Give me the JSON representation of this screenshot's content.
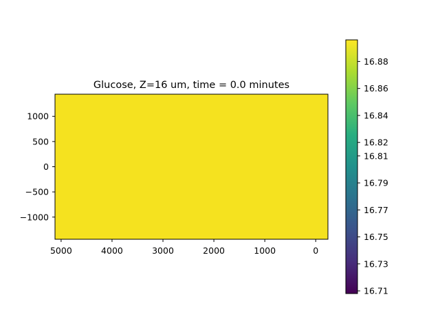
{
  "chart_data": {
    "type": "heatmap",
    "title": "Glucose, Z=16 um, time = 0.0 minutes",
    "xlabel": "",
    "ylabel": "",
    "x_axis": {
      "ticks": [
        5000,
        4000,
        3000,
        2000,
        1000,
        0
      ],
      "tick_labels": [
        "5000",
        "4000",
        "3000",
        "2000",
        "1000",
        "0"
      ],
      "inverted": true,
      "range": [
        5120,
        -240
      ]
    },
    "y_axis": {
      "ticks": [
        1000,
        500,
        0,
        -500,
        -1000
      ],
      "tick_labels": [
        "1000",
        "500",
        "0",
        "−500",
        "−1000"
      ],
      "range": [
        -1440,
        1440
      ]
    },
    "grid": false,
    "field": {
      "value": 16.89,
      "uniform": true,
      "color": "#f5e21f"
    },
    "colorbar": {
      "colormap": "viridis",
      "range": [
        16.708,
        16.896
      ],
      "ticks": [
        16.71,
        16.73,
        16.75,
        16.77,
        16.79,
        16.81,
        16.82,
        16.84,
        16.86,
        16.88
      ],
      "tick_labels": [
        "16.71",
        "16.73",
        "16.75",
        "16.77",
        "16.79",
        "16.81",
        "16.82",
        "16.84",
        "16.86",
        "16.88"
      ]
    }
  }
}
